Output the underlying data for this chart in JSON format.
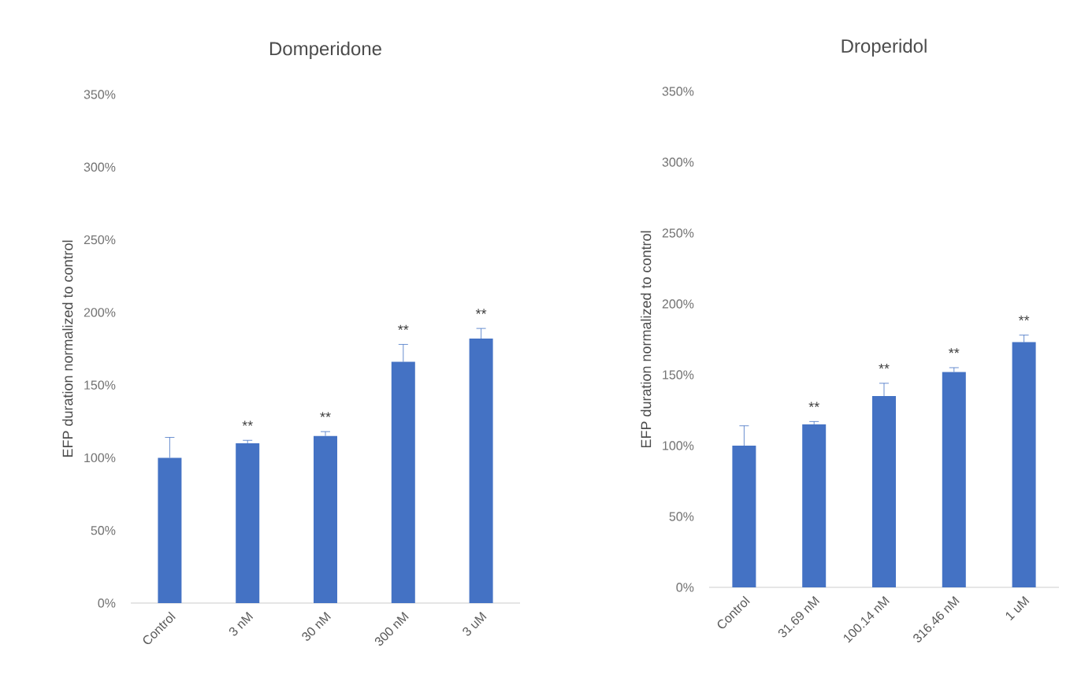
{
  "chart_data": [
    {
      "type": "bar",
      "title": "Domperidone",
      "ylabel": "EFP duration normalized to control",
      "categories": [
        "Control",
        "3 nM",
        "30 nM",
        "300 nM",
        "3 uM"
      ],
      "values": [
        100,
        110,
        115,
        166,
        182
      ],
      "errors": [
        14,
        2,
        3,
        12,
        7
      ],
      "color": "#4472c4",
      "ylim": [
        0,
        350
      ],
      "yticks": [
        {
          "value": 0,
          "label": "0%"
        },
        {
          "value": 50,
          "label": "50%"
        },
        {
          "value": 100,
          "label": "100%"
        },
        {
          "value": 150,
          "label": "150%"
        },
        {
          "value": 200,
          "label": "200%"
        },
        {
          "value": 250,
          "label": "250%"
        },
        {
          "value": 300,
          "label": "300%"
        },
        {
          "value": 350,
          "label": "350%"
        }
      ],
      "annotations": [
        {
          "text": "**",
          "x": "3 nM",
          "y": 112
        },
        {
          "text": "**",
          "x": "30 nM",
          "y": 118
        },
        {
          "text": "**",
          "x": "300 nM",
          "y": 178
        },
        {
          "text": "**",
          "x": "3 uM",
          "y": 189
        }
      ]
    },
    {
      "type": "bar",
      "title": "Droperidol",
      "ylabel": "EFP duration normalized to control",
      "categories": [
        "Control",
        "31.69 nM",
        "100.14 nM",
        "316.46 nM",
        "1 uM"
      ],
      "values": [
        100,
        115,
        135,
        152,
        173
      ],
      "errors": [
        14,
        2,
        9,
        3,
        5
      ],
      "color": "#4472c4",
      "ylim": [
        0,
        350
      ],
      "yticks": [
        {
          "value": 0,
          "label": "0%"
        },
        {
          "value": 50,
          "label": "50%"
        },
        {
          "value": 100,
          "label": "100%"
        },
        {
          "value": 150,
          "label": "150%"
        },
        {
          "value": 200,
          "label": "200%"
        },
        {
          "value": 250,
          "label": "250%"
        },
        {
          "value": 300,
          "label": "300%"
        },
        {
          "value": 350,
          "label": "350%"
        }
      ],
      "annotations": [
        {
          "text": "**",
          "x": "31.69 nM",
          "y": 117
        },
        {
          "text": "**",
          "x": "100.14 nM",
          "y": 144
        },
        {
          "text": "**",
          "x": "316.46 nM",
          "y": 155
        },
        {
          "text": "**",
          "x": "1 uM",
          "y": 178
        }
      ]
    }
  ]
}
